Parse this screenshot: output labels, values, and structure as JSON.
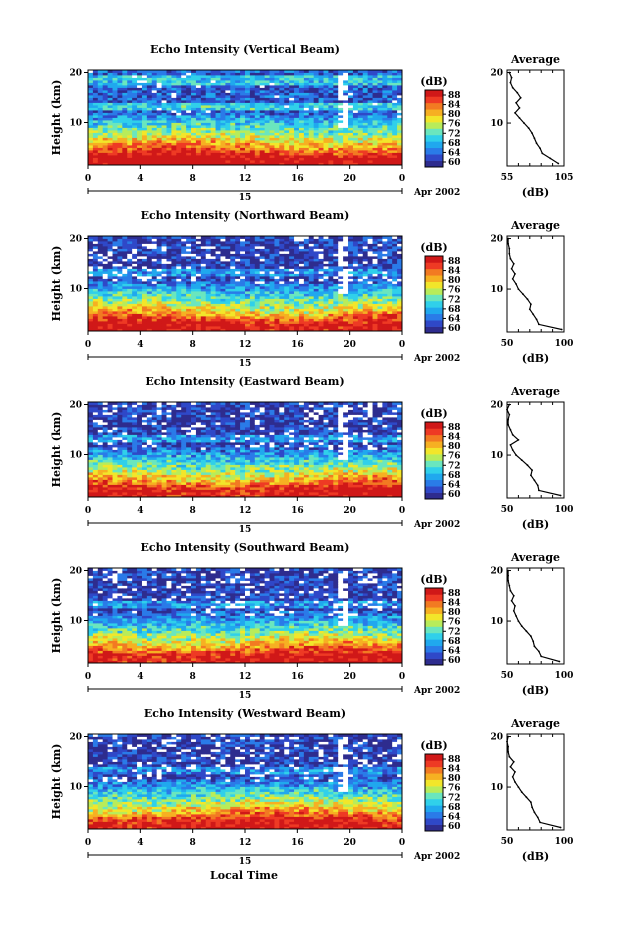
{
  "figure": {
    "x_axis_title": "Local Time",
    "date_label": "Apr 2002",
    "day_label": "15",
    "palette": [
      "#2e2c8e",
      "#2f48c8",
      "#2a7be8",
      "#20a8ee",
      "#30d0ea",
      "#6ae6be",
      "#b8ec5a",
      "#f2e62a",
      "#f6b022",
      "#f27a22",
      "#ee3a24",
      "#d01818"
    ]
  },
  "chart_data": [
    {
      "type": "heatmap",
      "title": "Echo Intensity (Vertical Beam)",
      "ylabel": "Height (km)",
      "x_ticks": [
        "0",
        "4",
        "8",
        "12",
        "16",
        "20",
        "0"
      ],
      "y_ticks": [
        "10",
        "20"
      ],
      "xlim": [
        0,
        24
      ],
      "ylim": [
        1.5,
        20.5
      ],
      "colorbar": {
        "label": "(dB)",
        "ticks": [
          "88",
          "84",
          "80",
          "76",
          "72",
          "68",
          "64",
          "60"
        ],
        "range": [
          58,
          90
        ]
      },
      "profile": {
        "title": "Average",
        "xlabel": "(dB)",
        "x_ticks": [
          "55",
          "105"
        ],
        "xlim": [
          55,
          105
        ],
        "y_ticks": [
          "10",
          "20"
        ],
        "heights": [
          2,
          3,
          4,
          5,
          6,
          7,
          8,
          9,
          10,
          11,
          12,
          13,
          14,
          15,
          16,
          17,
          18,
          19,
          20
        ],
        "values": [
          100,
          93,
          86,
          84,
          81,
          79,
          77,
          74,
          70,
          66,
          62,
          66,
          63,
          67,
          64,
          60,
          58,
          59,
          57
        ]
      }
    },
    {
      "type": "heatmap",
      "title": "Echo Intensity (Northward Beam)",
      "ylabel": "Height (km)",
      "x_ticks": [
        "0",
        "4",
        "8",
        "12",
        "16",
        "20",
        "0"
      ],
      "y_ticks": [
        "10",
        "20"
      ],
      "xlim": [
        0,
        24
      ],
      "ylim": [
        1.5,
        20.5
      ],
      "colorbar": {
        "label": "(dB)",
        "ticks": [
          "88",
          "84",
          "80",
          "76",
          "72",
          "68",
          "64",
          "60"
        ],
        "range": [
          58,
          90
        ]
      },
      "profile": {
        "title": "Average",
        "xlabel": "(dB)",
        "x_ticks": [
          "50",
          "100"
        ],
        "xlim": [
          50,
          100
        ],
        "y_ticks": [
          "10",
          "20"
        ],
        "heights": [
          2,
          3,
          4,
          5,
          6,
          7,
          8,
          9,
          10,
          11,
          12,
          13,
          14,
          15,
          16,
          17,
          18,
          19,
          20
        ],
        "values": [
          98,
          78,
          76,
          73,
          70,
          71,
          68,
          64,
          60,
          58,
          55,
          57,
          54,
          56,
          53,
          52,
          52,
          51,
          51
        ]
      }
    },
    {
      "type": "heatmap",
      "title": "Echo Intensity (Eastward Beam)",
      "ylabel": "Height (km)",
      "x_ticks": [
        "0",
        "4",
        "8",
        "12",
        "16",
        "20",
        "0"
      ],
      "y_ticks": [
        "10",
        "20"
      ],
      "xlim": [
        0,
        24
      ],
      "ylim": [
        1.5,
        20.5
      ],
      "colorbar": {
        "label": "(dB)",
        "ticks": [
          "88",
          "84",
          "80",
          "76",
          "72",
          "68",
          "64",
          "60"
        ],
        "range": [
          58,
          90
        ]
      },
      "profile": {
        "title": "Average",
        "xlabel": "(dB)",
        "x_ticks": [
          "50",
          "100"
        ],
        "xlim": [
          50,
          100
        ],
        "y_ticks": [
          "10",
          "20"
        ],
        "heights": [
          2,
          3,
          4,
          5,
          6,
          7,
          8,
          9,
          10,
          11,
          12,
          13,
          14,
          15,
          16,
          17,
          18,
          19,
          20
        ],
        "values": [
          97,
          78,
          77,
          74,
          71,
          72,
          68,
          63,
          58,
          55,
          53,
          60,
          55,
          53,
          51,
          51,
          52,
          50,
          52
        ]
      }
    },
    {
      "type": "heatmap",
      "title": "Echo Intensity (Southward Beam)",
      "ylabel": "Height (km)",
      "x_ticks": [
        "0",
        "4",
        "8",
        "12",
        "16",
        "20",
        "0"
      ],
      "y_ticks": [
        "10",
        "20"
      ],
      "xlim": [
        0,
        24
      ],
      "ylim": [
        1.5,
        20.5
      ],
      "colorbar": {
        "label": "(dB)",
        "ticks": [
          "88",
          "84",
          "80",
          "76",
          "72",
          "68",
          "64",
          "60"
        ],
        "range": [
          58,
          90
        ]
      },
      "profile": {
        "title": "Average",
        "xlabel": "(dB)",
        "x_ticks": [
          "50",
          "100"
        ],
        "xlim": [
          50,
          100
        ],
        "y_ticks": [
          "10",
          "20"
        ],
        "heights": [
          2,
          3,
          4,
          5,
          6,
          7,
          8,
          9,
          10,
          11,
          12,
          13,
          14,
          15,
          16,
          17,
          18,
          19,
          20
        ],
        "values": [
          96,
          80,
          78,
          74,
          73,
          71,
          67,
          63,
          60,
          58,
          56,
          57,
          54,
          56,
          53,
          52,
          51,
          51,
          51
        ]
      }
    },
    {
      "type": "heatmap",
      "title": "Echo Intensity (Westward Beam)",
      "ylabel": "Height (km)",
      "x_ticks": [
        "0",
        "4",
        "8",
        "12",
        "16",
        "20",
        "0"
      ],
      "y_ticks": [
        "10",
        "20"
      ],
      "xlim": [
        0,
        24
      ],
      "ylim": [
        1.5,
        20.5
      ],
      "colorbar": {
        "label": "(dB)",
        "ticks": [
          "88",
          "84",
          "80",
          "76",
          "72",
          "68",
          "64",
          "60"
        ],
        "range": [
          58,
          90
        ]
      },
      "profile": {
        "title": "Average",
        "xlabel": "(dB)",
        "x_ticks": [
          "50",
          "100"
        ],
        "xlim": [
          50,
          100
        ],
        "y_ticks": [
          "10",
          "20"
        ],
        "heights": [
          2,
          3,
          4,
          5,
          6,
          7,
          8,
          9,
          10,
          11,
          12,
          13,
          14,
          15,
          16,
          17,
          18,
          19,
          20
        ],
        "values": [
          97,
          79,
          77,
          74,
          72,
          71,
          67,
          63,
          60,
          57,
          55,
          57,
          53,
          56,
          52,
          51,
          51,
          50,
          51
        ]
      }
    }
  ]
}
